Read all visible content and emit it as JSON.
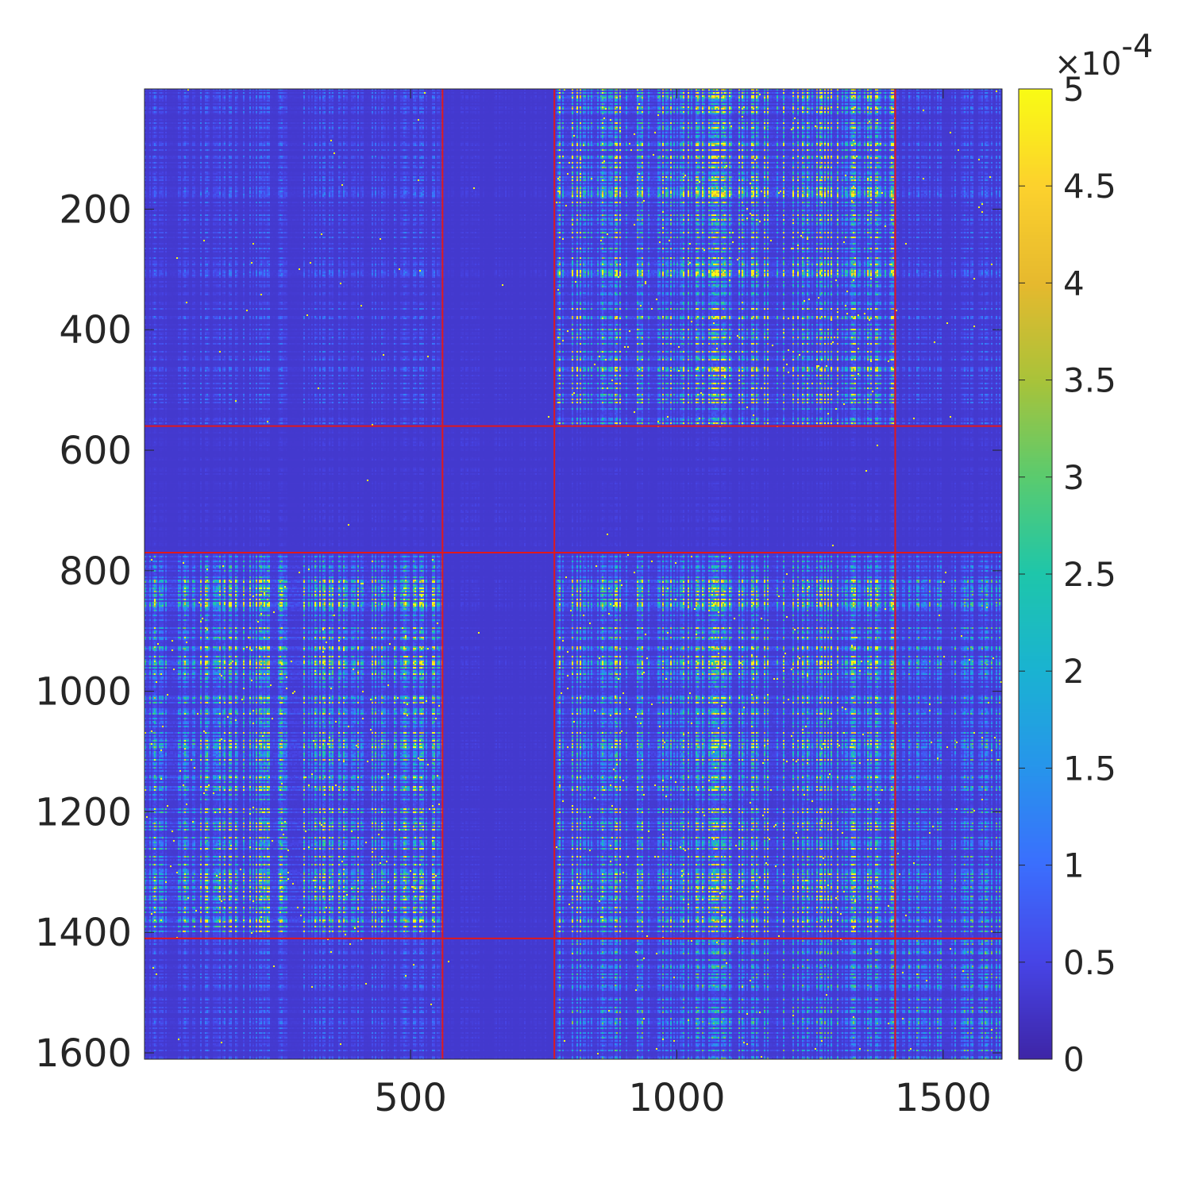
{
  "chart_data": {
    "type": "heatmap",
    "title": "",
    "xlabel": "",
    "ylabel": "",
    "n_rows": 1610,
    "n_cols": 1610,
    "xlim": [
      1,
      1610
    ],
    "ylim": [
      1,
      1610
    ],
    "y_reversed": true,
    "x_ticks": [
      500,
      1000,
      1500
    ],
    "y_ticks": [
      200,
      400,
      600,
      800,
      1000,
      1200,
      1400,
      1600
    ],
    "colormap": "parula",
    "colormap_stops": [
      "#3e26a8",
      "#4745e7",
      "#3b6ffe",
      "#2795eb",
      "#1ab3d2",
      "#1ec6ab",
      "#5acb6f",
      "#a9c33a",
      "#e6b92e",
      "#fcd12d",
      "#f9fb15"
    ],
    "clim": [
      0,
      0.0005
    ],
    "colorbar": {
      "exponent_label": "×10",
      "exponent": "-4",
      "ticks": [
        0,
        0.5,
        1,
        1.5,
        2,
        2.5,
        3,
        3.5,
        4,
        4.5,
        5
      ],
      "tick_labels": [
        "0",
        "0.5",
        "1",
        "1.5",
        "2",
        "2.5",
        "3",
        "3.5",
        "4",
        "4.5",
        "5"
      ]
    },
    "block_boundaries": [
      560,
      770,
      1410
    ],
    "boundary_color": "#e0191c",
    "blocks": [
      {
        "rows": [
          1,
          560
        ],
        "cols": [
          1,
          560
        ],
        "level": "low"
      },
      {
        "rows": [
          1,
          560
        ],
        "cols": [
          560,
          770
        ],
        "level": "very low"
      },
      {
        "rows": [
          1,
          560
        ],
        "cols": [
          770,
          1410
        ],
        "level": "high"
      },
      {
        "rows": [
          1,
          560
        ],
        "cols": [
          1410,
          1610
        ],
        "level": "low"
      },
      {
        "rows": [
          560,
          770
        ],
        "cols": [
          1,
          1610
        ],
        "level": "very low"
      },
      {
        "rows": [
          770,
          1410
        ],
        "cols": [
          1,
          560
        ],
        "level": "high"
      },
      {
        "rows": [
          770,
          1410
        ],
        "cols": [
          560,
          770
        ],
        "level": "very low"
      },
      {
        "rows": [
          770,
          1410
        ],
        "cols": [
          770,
          1410
        ],
        "level": "high"
      },
      {
        "rows": [
          770,
          1410
        ],
        "cols": [
          1410,
          1610
        ],
        "level": "medium"
      },
      {
        "rows": [
          1410,
          1610
        ],
        "cols": [
          1,
          560
        ],
        "level": "low"
      },
      {
        "rows": [
          1410,
          1610
        ],
        "cols": [
          560,
          770
        ],
        "level": "very low"
      },
      {
        "rows": [
          1410,
          1610
        ],
        "cols": [
          770,
          1410
        ],
        "level": "medium"
      },
      {
        "rows": [
          1410,
          1610
        ],
        "cols": [
          1410,
          1610
        ],
        "level": "medium"
      }
    ]
  }
}
